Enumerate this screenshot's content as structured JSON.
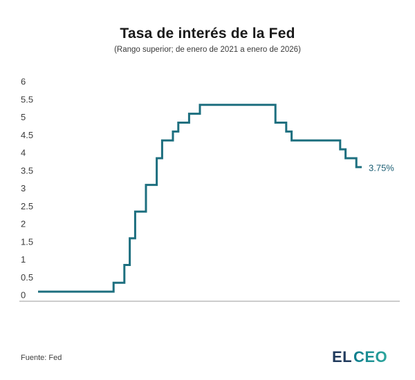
{
  "header": {
    "title": "Tasa de interés de la Fed",
    "subtitle": "(Rango superior; de enero de 2021 a enero de 2026)"
  },
  "chart_data": {
    "type": "line",
    "subtype": "step",
    "title": "Tasa de interés de la Fed",
    "subtitle": "(Rango superior; de enero de 2021 a enero de 2026)",
    "unit": "%",
    "x_range_labels": [
      "enero 2021",
      "enero 2026"
    ],
    "x_axis_months_total": 60,
    "y_ticks": [
      6,
      5.5,
      5,
      4.5,
      4,
      3.5,
      3,
      2.5,
      2,
      1.5,
      1,
      0.5,
      0
    ],
    "ylim": [
      0,
      6
    ],
    "grid": false,
    "x_tick_labels_shown": false,
    "legend": "none",
    "line_color": "#1d6f7f",
    "end_label": "3.75%",
    "end_label_color": "#1b5e74",
    "points": [
      {
        "date": "ene 2021",
        "month": 0,
        "value": 0.25
      },
      {
        "date": "mar 2022",
        "month": 14,
        "value": 0.5
      },
      {
        "date": "may 2022",
        "month": 16,
        "value": 1.0
      },
      {
        "date": "jun 2022",
        "month": 17,
        "value": 1.75
      },
      {
        "date": "jul 2022",
        "month": 18,
        "value": 2.5
      },
      {
        "date": "sep 2022",
        "month": 20,
        "value": 3.25
      },
      {
        "date": "nov 2022",
        "month": 22,
        "value": 4.0
      },
      {
        "date": "dic 2022",
        "month": 23,
        "value": 4.5
      },
      {
        "date": "feb 2023",
        "month": 25,
        "value": 4.75
      },
      {
        "date": "mar 2023",
        "month": 26,
        "value": 5.0
      },
      {
        "date": "may 2023",
        "month": 28,
        "value": 5.25
      },
      {
        "date": "jul 2023",
        "month": 30,
        "value": 5.5
      },
      {
        "date": "sep 2024",
        "month": 44,
        "value": 5.0
      },
      {
        "date": "nov 2024",
        "month": 46,
        "value": 4.75
      },
      {
        "date": "dic 2024",
        "month": 47,
        "value": 4.5
      },
      {
        "date": "sep 2025",
        "month": 56,
        "value": 4.25
      },
      {
        "date": "oct 2025",
        "month": 57,
        "value": 4.0
      },
      {
        "date": "dic 2025",
        "month": 59,
        "value": 3.75
      },
      {
        "date": "ene 2026",
        "month": 60,
        "value": 3.75
      }
    ]
  },
  "footer": {
    "source": "Fuente: Fed",
    "logo": {
      "el": "EL",
      "ceo": "CEO"
    }
  },
  "colors": {
    "line": "#1d6f7f",
    "end_label": "#1b5e74",
    "axis": "#9a9a9a",
    "tick_text": "#3b3b3b",
    "title": "#1a1a1a",
    "logo_navy": "#203a5c",
    "logo_teal_start": "#0d7c8d",
    "logo_teal_end": "#2ea79d"
  }
}
